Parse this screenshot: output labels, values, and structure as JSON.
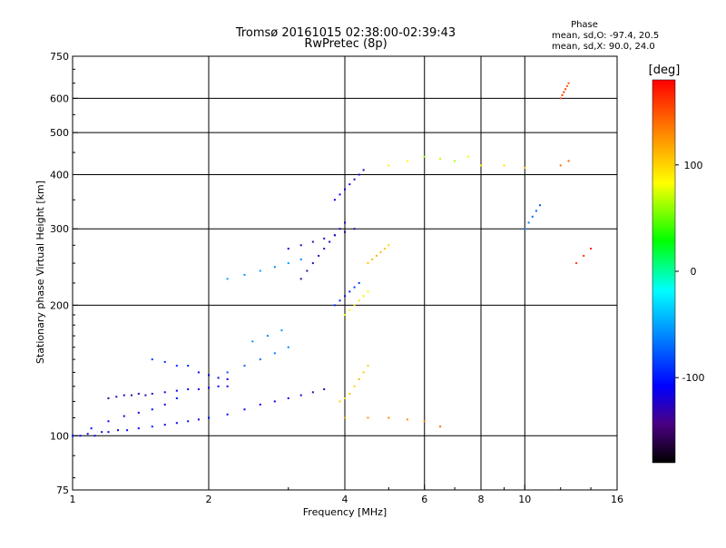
{
  "header": {
    "title_line1": "Tromsø 20161015 02:38:00-02:39:43",
    "title_line2": "RwPretec (8p)"
  },
  "phase_stats": {
    "heading": "Phase",
    "line_o": "mean, sd,O: -97.4, 20.5",
    "line_x": "mean, sd,X:  90.0, 24.0"
  },
  "colorbar": {
    "unit_label": "[deg]",
    "ticks": [
      {
        "value": 100,
        "label": "100"
      },
      {
        "value": 0,
        "label": "0"
      },
      {
        "value": -100,
        "label": "-100"
      }
    ],
    "range": [
      -180,
      180
    ]
  },
  "chart_data": {
    "type": "scatter",
    "title": "Tromsø 20161015 02:38:00-02:39:43",
    "subtitle": "RwPretec (8p)",
    "xlabel": "Frequency [MHz]",
    "ylabel": "Stationary phase Virtual Height [km]",
    "xscale": "log",
    "yscale": "log",
    "xlim": [
      1,
      16
    ],
    "ylim": [
      75,
      750
    ],
    "xticks": [
      {
        "value": 1,
        "label": "1"
      },
      {
        "value": 2,
        "label": "2"
      },
      {
        "value": 4,
        "label": "4"
      },
      {
        "value": 6,
        "label": "6"
      },
      {
        "value": 8,
        "label": "8"
      },
      {
        "value": 10,
        "label": "10"
      },
      {
        "value": 16,
        "label": "16"
      }
    ],
    "yticks": [
      {
        "value": 75,
        "label": "75"
      },
      {
        "value": 100,
        "label": "100"
      },
      {
        "value": 200,
        "label": "200"
      },
      {
        "value": 300,
        "label": "300"
      },
      {
        "value": 400,
        "label": "400"
      },
      {
        "value": 500,
        "label": "500"
      },
      {
        "value": 600,
        "label": "600"
      },
      {
        "value": 750,
        "label": "750"
      }
    ],
    "xgrid": [
      2,
      4,
      6,
      8,
      10
    ],
    "ygrid": [
      100,
      200,
      300,
      400,
      500,
      600
    ],
    "color_by": "phase [deg]",
    "series": [
      {
        "values": [
          [
            1.0,
            100,
            -115
          ],
          [
            1.04,
            100,
            -112
          ],
          [
            1.08,
            101,
            -118
          ],
          [
            1.12,
            100,
            -110
          ],
          [
            1.16,
            102,
            -115
          ],
          [
            1.2,
            102,
            -108
          ],
          [
            1.26,
            103,
            -112
          ],
          [
            1.32,
            103,
            -105
          ],
          [
            1.4,
            104,
            -110
          ],
          [
            1.5,
            105,
            -100
          ],
          [
            1.6,
            106,
            -108
          ],
          [
            1.7,
            107,
            -112
          ],
          [
            1.8,
            108,
            -105
          ],
          [
            1.9,
            109,
            -110
          ],
          [
            2.0,
            110,
            -100
          ]
        ]
      },
      {
        "values": [
          [
            1.2,
            122,
            -125
          ],
          [
            1.25,
            123,
            -130
          ],
          [
            1.3,
            124,
            -128
          ],
          [
            1.35,
            124,
            -132
          ],
          [
            1.4,
            125,
            -126
          ],
          [
            1.45,
            124,
            -130
          ],
          [
            1.5,
            125,
            -128
          ],
          [
            1.6,
            126,
            -120
          ],
          [
            1.7,
            127,
            -115
          ],
          [
            1.8,
            128,
            -110
          ],
          [
            1.9,
            128,
            -112
          ],
          [
            2.0,
            129,
            -110
          ],
          [
            2.1,
            130,
            -108
          ],
          [
            2.2,
            130,
            -112
          ]
        ]
      },
      {
        "values": [
          [
            1.0,
            100,
            -100
          ],
          [
            1.1,
            104,
            -105
          ],
          [
            1.2,
            108,
            -110
          ],
          [
            1.3,
            111,
            -108
          ],
          [
            1.4,
            113,
            -112
          ],
          [
            1.5,
            115,
            -108
          ],
          [
            1.6,
            118,
            -110
          ],
          [
            1.7,
            122,
            -105
          ]
        ]
      },
      {
        "values": [
          [
            1.5,
            150,
            -90
          ],
          [
            1.6,
            148,
            -92
          ],
          [
            1.7,
            145,
            -95
          ],
          [
            1.8,
            145,
            -100
          ],
          [
            1.9,
            140,
            -105
          ],
          [
            2.0,
            138,
            -110
          ],
          [
            2.1,
            136,
            -108
          ],
          [
            2.2,
            135,
            -112
          ]
        ]
      },
      {
        "values": [
          [
            2.0,
            110,
            -105
          ],
          [
            2.2,
            112,
            -108
          ],
          [
            2.4,
            115,
            -110
          ],
          [
            2.6,
            118,
            -112
          ],
          [
            2.8,
            120,
            -115
          ],
          [
            3.0,
            122,
            -118
          ],
          [
            3.2,
            124,
            -120
          ],
          [
            3.4,
            126,
            -122
          ],
          [
            3.6,
            128,
            -125
          ]
        ]
      },
      {
        "values": [
          [
            2.2,
            140,
            -80
          ],
          [
            2.4,
            145,
            -75
          ],
          [
            2.6,
            150,
            -70
          ],
          [
            2.8,
            155,
            -65
          ],
          [
            3.0,
            160,
            -60
          ],
          [
            2.5,
            165,
            -55
          ],
          [
            2.7,
            170,
            -60
          ],
          [
            2.9,
            175,
            -55
          ]
        ]
      },
      {
        "values": [
          [
            2.2,
            230,
            -50
          ],
          [
            2.4,
            235,
            -55
          ],
          [
            2.6,
            240,
            -50
          ],
          [
            2.8,
            245,
            -60
          ],
          [
            3.0,
            250,
            -55
          ],
          [
            3.2,
            255,
            -60
          ]
        ]
      },
      {
        "values": [
          [
            3.0,
            270,
            -120
          ],
          [
            3.2,
            275,
            -125
          ],
          [
            3.4,
            280,
            -130
          ],
          [
            3.6,
            285,
            -128
          ],
          [
            3.8,
            290,
            -125
          ],
          [
            4.0,
            295,
            -122
          ],
          [
            4.2,
            300,
            -128
          ]
        ]
      },
      {
        "values": [
          [
            3.2,
            230,
            -130
          ],
          [
            3.3,
            240,
            -135
          ],
          [
            3.4,
            250,
            -132
          ],
          [
            3.5,
            260,
            -130
          ],
          [
            3.6,
            270,
            -128
          ],
          [
            3.7,
            280,
            -130
          ],
          [
            3.8,
            290,
            -132
          ],
          [
            3.9,
            300,
            -128
          ],
          [
            4.0,
            310,
            -125
          ]
        ]
      },
      {
        "values": [
          [
            3.8,
            350,
            -110
          ],
          [
            3.9,
            360,
            -112
          ],
          [
            4.0,
            370,
            -115
          ],
          [
            4.1,
            380,
            -118
          ],
          [
            4.2,
            390,
            -120
          ],
          [
            4.3,
            400,
            -122
          ],
          [
            4.4,
            410,
            -125
          ]
        ]
      },
      {
        "values": [
          [
            3.8,
            200,
            -90
          ],
          [
            3.9,
            205,
            -95
          ],
          [
            4.0,
            210,
            -100
          ],
          [
            4.1,
            215,
            -95
          ],
          [
            4.2,
            220,
            -90
          ],
          [
            4.3,
            225,
            -85
          ]
        ]
      },
      {
        "values": [
          [
            3.9,
            120,
            100
          ],
          [
            4.0,
            122,
            95
          ],
          [
            4.1,
            125,
            105
          ],
          [
            4.2,
            130,
            100
          ],
          [
            4.3,
            135,
            110
          ],
          [
            4.4,
            140,
            105
          ],
          [
            4.5,
            145,
            100
          ]
        ]
      },
      {
        "values": [
          [
            4.5,
            250,
            105
          ],
          [
            4.6,
            255,
            110
          ],
          [
            4.7,
            260,
            115
          ],
          [
            4.8,
            265,
            110
          ],
          [
            4.9,
            270,
            105
          ],
          [
            5.0,
            275,
            100
          ]
        ]
      },
      {
        "values": [
          [
            4.0,
            190,
            80
          ],
          [
            4.1,
            195,
            85
          ],
          [
            4.2,
            200,
            90
          ],
          [
            4.3,
            205,
            95
          ],
          [
            4.4,
            210,
            90
          ],
          [
            4.5,
            215,
            85
          ]
        ]
      },
      {
        "values": [
          [
            4.0,
            110,
            120
          ],
          [
            4.5,
            110,
            125
          ],
          [
            5.0,
            110,
            130
          ],
          [
            5.5,
            109,
            128
          ],
          [
            6.0,
            108,
            130
          ],
          [
            6.5,
            105,
            140
          ]
        ]
      },
      {
        "values": [
          [
            5.0,
            420,
            90
          ],
          [
            5.5,
            430,
            85
          ],
          [
            6.0,
            440,
            60
          ],
          [
            6.5,
            435,
            70
          ],
          [
            7.0,
            430,
            65
          ],
          [
            7.5,
            440,
            80
          ],
          [
            8.0,
            420,
            85
          ],
          [
            9.0,
            420,
            95
          ],
          [
            10.0,
            415,
            110
          ]
        ]
      },
      {
        "values": [
          [
            12.0,
            600,
            150
          ],
          [
            12.1,
            610,
            155
          ],
          [
            12.2,
            620,
            160
          ],
          [
            12.3,
            630,
            150
          ],
          [
            12.4,
            640,
            145
          ],
          [
            12.5,
            650,
            150
          ]
        ]
      },
      {
        "values": [
          [
            12.0,
            420,
            140
          ],
          [
            12.5,
            430,
            145
          ],
          [
            13.0,
            250,
            160
          ],
          [
            13.5,
            260,
            165
          ],
          [
            14.0,
            270,
            170
          ]
        ]
      },
      {
        "values": [
          [
            10.0,
            300,
            -60
          ],
          [
            10.2,
            310,
            -65
          ],
          [
            10.4,
            320,
            -70
          ],
          [
            10.6,
            330,
            -75
          ],
          [
            10.8,
            340,
            -80
          ]
        ]
      }
    ]
  }
}
